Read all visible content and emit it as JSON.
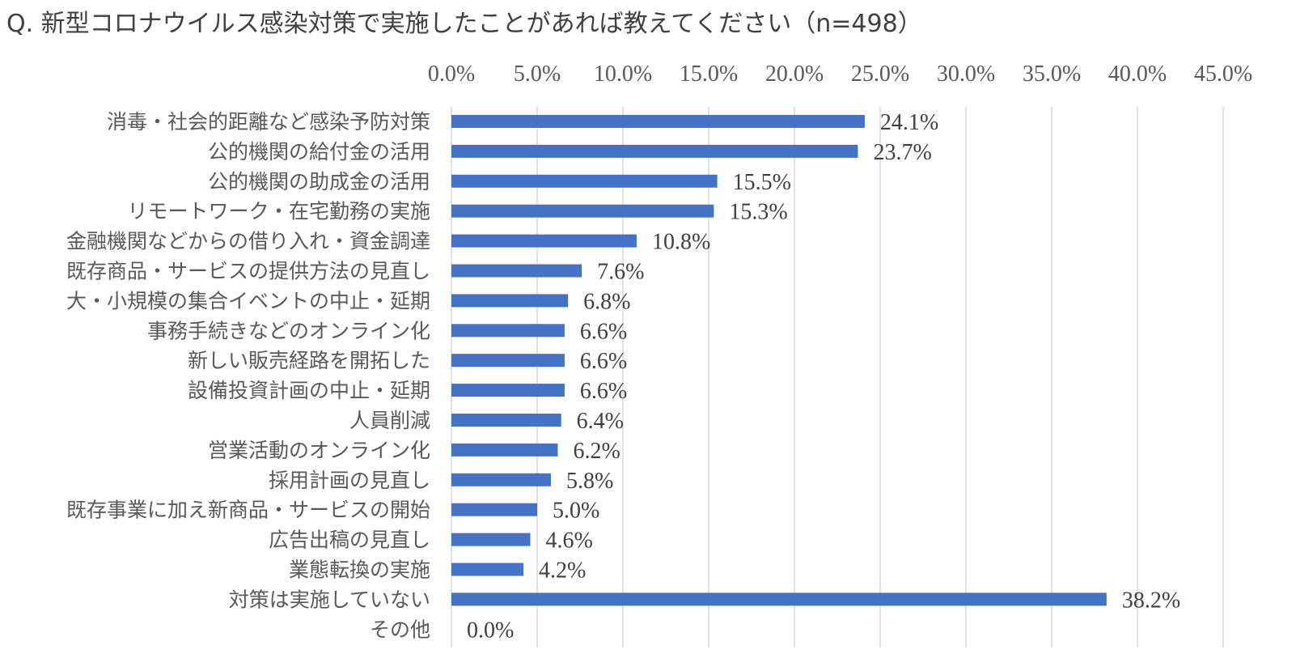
{
  "chart_data": {
    "type": "bar",
    "orientation": "horizontal",
    "title": "Q. 新型コロナウイルス感染対策で実施したことがあれば教えてください（n=498）",
    "categories": [
      "消毒・社会的距離など感染予防対策",
      "公的機関の給付金の活用",
      "公的機関の助成金の活用",
      "リモートワーク・在宅勤務の実施",
      "金融機関などからの借り入れ・資金調達",
      "既存商品・サービスの提供方法の見直し",
      "大・小規模の集合イベントの中止・延期",
      "事務手続きなどのオンライン化",
      "新しい販売経路を開拓した",
      "設備投資計画の中止・延期",
      "人員削減",
      "営業活動のオンライン化",
      "採用計画の見直し",
      "既存事業に加え新商品・サービスの開始",
      "広告出稿の見直し",
      "業態転換の実施",
      "対策は実施していない",
      "その他"
    ],
    "values": [
      24.1,
      23.7,
      15.5,
      15.3,
      10.8,
      7.6,
      6.8,
      6.6,
      6.6,
      6.6,
      6.4,
      6.2,
      5.8,
      5.0,
      4.6,
      4.2,
      38.2,
      0.0
    ],
    "data_labels": [
      "24.1%",
      "23.7%",
      "15.5%",
      "15.3%",
      "10.8%",
      "7.6%",
      "6.8%",
      "6.6%",
      "6.6%",
      "6.6%",
      "6.4%",
      "6.2%",
      "5.8%",
      "5.0%",
      "4.6%",
      "4.2%",
      "38.2%",
      "0.0%"
    ],
    "xaxis_ticks": [
      "0.0%",
      "5.0%",
      "10.0%",
      "15.0%",
      "20.0%",
      "25.0%",
      "30.0%",
      "35.0%",
      "40.0%",
      "45.0%"
    ],
    "xlim": [
      0,
      45
    ],
    "xaxis_position": "top",
    "grid": true,
    "legend": "none",
    "bar_color": "#4472C4",
    "grid_color": "#D9D9D9"
  }
}
